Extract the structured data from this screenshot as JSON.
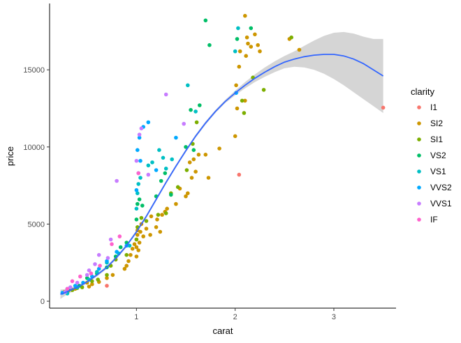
{
  "chart_data": {
    "type": "scatter",
    "title": "",
    "xlabel": "carat",
    "ylabel": "price",
    "xlim": [
      0.12,
      3.63
    ],
    "ylim": [
      -450,
      19300
    ],
    "xticks": [
      1,
      2,
      3
    ],
    "yticks": [
      0,
      5000,
      10000,
      15000
    ],
    "xtick_labels": [
      "1",
      "2",
      "3"
    ],
    "ytick_labels": [
      "0",
      "5000",
      "10000",
      "15000"
    ],
    "grid": false,
    "legend": {
      "title": "clarity",
      "placement": "right",
      "entries": [
        "I1",
        "SI2",
        "SI1",
        "VS2",
        "VS1",
        "VVS2",
        "VVS1",
        "IF"
      ]
    },
    "colors": {
      "I1": "#F8766D",
      "SI2": "#CD9600",
      "SI1": "#7CAE00",
      "VS2": "#00BE67",
      "VS1": "#00BFC4",
      "VVS2": "#00A9FF",
      "VVS1": "#C77CFF",
      "IF": "#FF61CC",
      "smooth_line": "#3366FF",
      "confidence_band": "#BEBEBE"
    },
    "series": [
      {
        "name": "I1",
        "points": [
          [
            0.7,
            1000
          ],
          [
            2.04,
            8200
          ],
          [
            3.5,
            12550
          ]
        ]
      },
      {
        "name": "SI2",
        "points": [
          [
            0.27,
            600
          ],
          [
            0.31,
            680
          ],
          [
            0.38,
            800
          ],
          [
            0.5,
            1200
          ],
          [
            0.52,
            950
          ],
          [
            0.55,
            1100
          ],
          [
            0.62,
            1250
          ],
          [
            0.7,
            1500
          ],
          [
            0.76,
            1700
          ],
          [
            0.88,
            2100
          ],
          [
            0.9,
            2300
          ],
          [
            0.92,
            2600
          ],
          [
            0.94,
            3000
          ],
          [
            0.96,
            3400
          ],
          [
            0.98,
            3700
          ],
          [
            1.0,
            2900
          ],
          [
            1.0,
            3500
          ],
          [
            1.0,
            4000
          ],
          [
            1.01,
            4300
          ],
          [
            1.01,
            4600
          ],
          [
            1.02,
            3300
          ],
          [
            1.03,
            3800
          ],
          [
            1.04,
            4500
          ],
          [
            1.05,
            5000
          ],
          [
            1.07,
            4200
          ],
          [
            1.1,
            4700
          ],
          [
            1.14,
            4300
          ],
          [
            1.15,
            5500
          ],
          [
            1.2,
            4800
          ],
          [
            1.21,
            5300
          ],
          [
            1.24,
            4500
          ],
          [
            1.26,
            5600
          ],
          [
            1.29,
            5800
          ],
          [
            1.31,
            6000
          ],
          [
            1.4,
            6300
          ],
          [
            1.44,
            7300
          ],
          [
            1.5,
            6800
          ],
          [
            1.52,
            7000
          ],
          [
            1.54,
            9000
          ],
          [
            1.56,
            8000
          ],
          [
            1.58,
            9200
          ],
          [
            1.6,
            8400
          ],
          [
            1.63,
            9500
          ],
          [
            1.7,
            9500
          ],
          [
            1.73,
            8000
          ],
          [
            1.84,
            9900
          ],
          [
            2.0,
            10700
          ],
          [
            2.01,
            14000
          ],
          [
            2.02,
            12500
          ],
          [
            2.04,
            15200
          ],
          [
            2.05,
            16200
          ],
          [
            2.1,
            13000
          ],
          [
            2.11,
            15900
          ],
          [
            2.12,
            17100
          ],
          [
            2.13,
            16700
          ],
          [
            2.16,
            16500
          ],
          [
            2.2,
            17300
          ],
          [
            2.23,
            16600
          ],
          [
            2.25,
            16200
          ],
          [
            2.55,
            17000
          ],
          [
            2.65,
            16300
          ],
          [
            2.1,
            18500
          ]
        ]
      },
      {
        "name": "SI1",
        "points": [
          [
            0.3,
            650
          ],
          [
            0.35,
            720
          ],
          [
            0.4,
            850
          ],
          [
            0.45,
            900
          ],
          [
            0.55,
            1300
          ],
          [
            0.61,
            1400
          ],
          [
            0.7,
            1700
          ],
          [
            0.74,
            2300
          ],
          [
            0.79,
            2700
          ],
          [
            0.9,
            3000
          ],
          [
            1.0,
            4000
          ],
          [
            1.01,
            4800
          ],
          [
            1.05,
            5400
          ],
          [
            1.1,
            5200
          ],
          [
            1.22,
            5600
          ],
          [
            1.3,
            5700
          ],
          [
            1.35,
            7000
          ],
          [
            1.42,
            7400
          ],
          [
            1.51,
            8500
          ],
          [
            1.57,
            10200
          ],
          [
            1.61,
            11600
          ],
          [
            2.07,
            13000
          ],
          [
            2.09,
            12200
          ],
          [
            2.18,
            14500
          ],
          [
            2.29,
            13700
          ],
          [
            2.57,
            17100
          ]
        ]
      },
      {
        "name": "VS2",
        "points": [
          [
            0.3,
            700
          ],
          [
            0.33,
            800
          ],
          [
            0.42,
            1000
          ],
          [
            0.5,
            1500
          ],
          [
            0.6,
            1800
          ],
          [
            0.7,
            2200
          ],
          [
            0.79,
            2900
          ],
          [
            0.84,
            3500
          ],
          [
            0.9,
            3800
          ],
          [
            1.0,
            5300
          ],
          [
            1.01,
            6300
          ],
          [
            1.03,
            6600
          ],
          [
            1.06,
            6200
          ],
          [
            1.2,
            6800
          ],
          [
            1.25,
            7800
          ],
          [
            1.29,
            8300
          ],
          [
            1.35,
            6900
          ],
          [
            1.5,
            10000
          ],
          [
            1.55,
            12400
          ],
          [
            1.58,
            9800
          ],
          [
            1.7,
            18200
          ],
          [
            1.74,
            16600
          ],
          [
            1.64,
            12700
          ],
          [
            2.02,
            17000
          ],
          [
            2.16,
            17700
          ]
        ]
      },
      {
        "name": "VS1",
        "points": [
          [
            0.3,
            500
          ],
          [
            0.4,
            900
          ],
          [
            0.52,
            1400
          ],
          [
            0.6,
            1900
          ],
          [
            0.7,
            2500
          ],
          [
            0.82,
            3100
          ],
          [
            0.93,
            3600
          ],
          [
            1.0,
            6000
          ],
          [
            1.01,
            7000
          ],
          [
            1.02,
            7600
          ],
          [
            1.04,
            8000
          ],
          [
            1.12,
            8800
          ],
          [
            1.16,
            9000
          ],
          [
            1.23,
            9800
          ],
          [
            1.27,
            9300
          ],
          [
            1.3,
            8600
          ],
          [
            1.36,
            9200
          ],
          [
            1.52,
            14000
          ],
          [
            1.6,
            12300
          ],
          [
            2.0,
            16200
          ],
          [
            2.03,
            17700
          ]
        ]
      },
      {
        "name": "VVS2",
        "points": [
          [
            0.25,
            550
          ],
          [
            0.3,
            800
          ],
          [
            0.38,
            1000
          ],
          [
            0.46,
            1200
          ],
          [
            0.55,
            1600
          ],
          [
            0.62,
            2100
          ],
          [
            0.7,
            2600
          ],
          [
            0.8,
            3200
          ],
          [
            0.9,
            3600
          ],
          [
            1.0,
            7200
          ],
          [
            1.02,
            8300
          ],
          [
            1.04,
            9100
          ],
          [
            1.01,
            9800
          ],
          [
            1.03,
            10600
          ],
          [
            1.07,
            11300
          ],
          [
            1.12,
            11600
          ],
          [
            1.2,
            8500
          ],
          [
            1.4,
            10600
          ],
          [
            2.01,
            13500
          ]
        ]
      },
      {
        "name": "VVS1",
        "points": [
          [
            0.28,
            600
          ],
          [
            0.33,
            900
          ],
          [
            0.4,
            1200
          ],
          [
            0.5,
            1700
          ],
          [
            0.52,
            2000
          ],
          [
            0.58,
            2400
          ],
          [
            0.62,
            3000
          ],
          [
            0.71,
            2800
          ],
          [
            0.74,
            4000
          ],
          [
            0.8,
            7800
          ],
          [
            1.0,
            9100
          ],
          [
            1.03,
            10800
          ],
          [
            1.05,
            11200
          ],
          [
            1.12,
            8200
          ],
          [
            1.3,
            13400
          ],
          [
            1.48,
            11500
          ]
        ]
      },
      {
        "name": "IF",
        "points": [
          [
            0.3,
            800
          ],
          [
            0.35,
            1300
          ],
          [
            0.43,
            1600
          ],
          [
            0.54,
            1800
          ],
          [
            0.63,
            2300
          ],
          [
            0.75,
            3700
          ],
          [
            0.83,
            4200
          ],
          [
            1.02,
            8300
          ]
        ]
      }
    ],
    "smooth": {
      "x": [
        0.23,
        0.3,
        0.4,
        0.5,
        0.6,
        0.7,
        0.8,
        0.9,
        1.0,
        1.1,
        1.2,
        1.3,
        1.4,
        1.5,
        1.6,
        1.7,
        1.8,
        1.9,
        2.0,
        2.1,
        2.2,
        2.3,
        2.4,
        2.5,
        2.6,
        2.7,
        2.8,
        2.9,
        3.0,
        3.1,
        3.2,
        3.3,
        3.4,
        3.5
      ],
      "y": [
        450,
        620,
        900,
        1250,
        1700,
        2200,
        2850,
        3600,
        4500,
        5500,
        6600,
        7700,
        8750,
        9750,
        10700,
        11550,
        12300,
        12950,
        13500,
        14000,
        14450,
        14850,
        15200,
        15500,
        15700,
        15850,
        15950,
        16000,
        16000,
        15900,
        15700,
        15400,
        15000,
        14600
      ],
      "lower": [
        150,
        450,
        780,
        1150,
        1600,
        2100,
        2750,
        3500,
        4400,
        5400,
        6500,
        7600,
        8650,
        9650,
        10600,
        11450,
        12200,
        12850,
        13350,
        13800,
        14200,
        14550,
        14850,
        15100,
        15200,
        15150,
        15000,
        14750,
        14400,
        14000,
        13550,
        13100,
        12650,
        12200
      ],
      "upper": [
        750,
        790,
        1020,
        1350,
        1800,
        2300,
        2950,
        3700,
        4600,
        5600,
        6700,
        7800,
        8850,
        9850,
        10800,
        11650,
        12400,
        13050,
        13650,
        14200,
        14700,
        15150,
        15550,
        15900,
        16200,
        16550,
        16900,
        17200,
        17400,
        17450,
        17350,
        17150,
        17000,
        17000
      ]
    }
  }
}
